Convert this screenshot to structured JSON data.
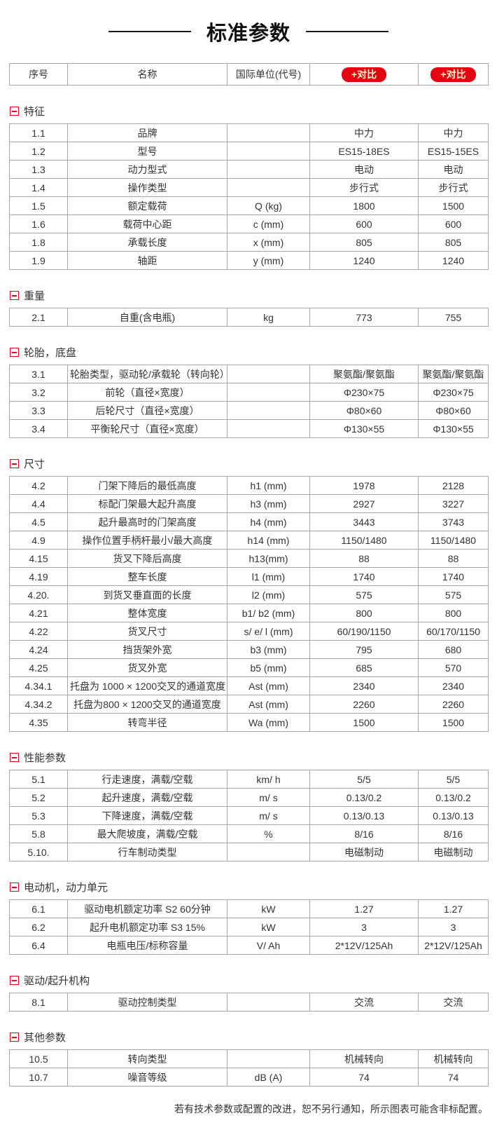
{
  "page": {
    "title": "标准参数",
    "footer_note": "若有技术参数或配置的改进，恕不另行通知，所示图表可能含非标配置。"
  },
  "colors": {
    "accent_red": "#e60012",
    "button_text": "#fffbd0",
    "border_gray": "#a6a6a6",
    "text": "#333333"
  },
  "table_header": {
    "no": "序号",
    "name": "名称",
    "unit": "国际单位(代号)",
    "compare_label": "+对比"
  },
  "sections": [
    {
      "name": "特征",
      "rows": [
        {
          "no": "1.1",
          "name": "品牌",
          "unit": "",
          "v1": "中力",
          "v2": "中力"
        },
        {
          "no": "1.2",
          "name": "型号",
          "unit": "",
          "v1": "ES15-18ES",
          "v2": "ES15-15ES"
        },
        {
          "no": "1.3",
          "name": "动力型式",
          "unit": "",
          "v1": "电动",
          "v2": "电动"
        },
        {
          "no": "1.4",
          "name": "操作类型",
          "unit": "",
          "v1": "步行式",
          "v2": "步行式"
        },
        {
          "no": "1.5",
          "name": "额定载荷",
          "unit": "Q (kg)",
          "v1": "1800",
          "v2": "1500"
        },
        {
          "no": "1.6",
          "name": "载荷中心距",
          "unit": "c (mm)",
          "v1": "600",
          "v2": "600"
        },
        {
          "no": "1.8",
          "name": "承载长度",
          "unit": "x (mm)",
          "v1": "805",
          "v2": "805"
        },
        {
          "no": "1.9",
          "name": "轴距",
          "unit": "y (mm)",
          "v1": "1240",
          "v2": "1240"
        }
      ]
    },
    {
      "name": "重量",
      "rows": [
        {
          "no": "2.1",
          "name": "自重(含电瓶)",
          "unit": "kg",
          "v1": "773",
          "v2": "755"
        }
      ]
    },
    {
      "name": "轮胎，底盘",
      "rows": [
        {
          "no": "3.1",
          "name": "轮胎类型，驱动轮/承载轮（转向轮）",
          "unit": "",
          "v1": "聚氨酯/聚氨酯",
          "v2": "聚氨酯/聚氨酯"
        },
        {
          "no": "3.2",
          "name": "前轮（直径×宽度）",
          "unit": "",
          "v1": "Φ230×75",
          "v2": "Φ230×75"
        },
        {
          "no": "3.3",
          "name": "后轮尺寸（直径×宽度）",
          "unit": "",
          "v1": "Φ80×60",
          "v2": "Φ80×60"
        },
        {
          "no": "3.4",
          "name": "平衡轮尺寸（直径×宽度）",
          "unit": "",
          "v1": "Φ130×55",
          "v2": "Φ130×55"
        }
      ]
    },
    {
      "name": "尺寸",
      "rows": [
        {
          "no": "4.2",
          "name": "门架下降后的最低高度",
          "unit": "h1 (mm)",
          "v1": "1978",
          "v2": "2128"
        },
        {
          "no": "4.4",
          "name": "标配门架最大起升高度",
          "unit": "h3 (mm)",
          "v1": "2927",
          "v2": "3227"
        },
        {
          "no": "4.5",
          "name": "起升最高时的门架高度",
          "unit": "h4 (mm)",
          "v1": "3443",
          "v2": "3743"
        },
        {
          "no": "4.9",
          "name": "操作位置手柄杆最小/最大高度",
          "unit": "h14 (mm)",
          "v1": "1150/1480",
          "v2": "1150/1480"
        },
        {
          "no": "4.15",
          "name": "货叉下降后高度",
          "unit": "h13(mm)",
          "v1": "88",
          "v2": "88"
        },
        {
          "no": "4.19",
          "name": "整车长度",
          "unit": "l1 (mm)",
          "v1": "1740",
          "v2": "1740"
        },
        {
          "no": "4.20.",
          "name": "到货叉垂直面的长度",
          "unit": "l2 (mm)",
          "v1": "575",
          "v2": "575"
        },
        {
          "no": "4.21",
          "name": "整体宽度",
          "unit": "b1/ b2 (mm)",
          "v1": "800",
          "v2": "800"
        },
        {
          "no": "4.22",
          "name": "货叉尺寸",
          "unit": "s/ e/ l (mm)",
          "v1": "60/190/1150",
          "v2": "60/170/1150"
        },
        {
          "no": "4.24",
          "name": "挡货架外宽",
          "unit": "b3 (mm)",
          "v1": "795",
          "v2": "680"
        },
        {
          "no": "4.25",
          "name": "货叉外宽",
          "unit": "b5 (mm)",
          "v1": "685",
          "v2": "570"
        },
        {
          "no": "4.34.1",
          "name": "托盘为 1000 × 1200交叉的通道宽度",
          "unit": "Ast (mm)",
          "v1": "2340",
          "v2": "2340"
        },
        {
          "no": "4.34.2",
          "name": "托盘为800 × 1200交叉的通道宽度",
          "unit": "Ast (mm)",
          "v1": "2260",
          "v2": "2260"
        },
        {
          "no": "4.35",
          "name": "转弯半径",
          "unit": "Wa (mm)",
          "v1": "1500",
          "v2": "1500"
        }
      ]
    },
    {
      "name": "性能参数",
      "rows": [
        {
          "no": "5.1",
          "name": "行走速度，满载/空载",
          "unit": "km/ h",
          "v1": "5/5",
          "v2": "5/5"
        },
        {
          "no": "5.2",
          "name": "起升速度，满载/空载",
          "unit": "m/ s",
          "v1": "0.13/0.2",
          "v2": "0.13/0.2"
        },
        {
          "no": "5.3",
          "name": "下降速度，满载/空载",
          "unit": "m/ s",
          "v1": "0.13/0.13",
          "v2": "0.13/0.13"
        },
        {
          "no": "5.8",
          "name": "最大爬坡度，满载/空载",
          "unit": "%",
          "v1": "8/16",
          "v2": "8/16"
        },
        {
          "no": "5.10.",
          "name": "行车制动类型",
          "unit": "",
          "v1": "电磁制动",
          "v2": "电磁制动"
        }
      ]
    },
    {
      "name": "电动机，动力单元",
      "rows": [
        {
          "no": "6.1",
          "name": "驱动电机额定功率 S2 60分钟",
          "unit": "kW",
          "v1": "1.27",
          "v2": "1.27"
        },
        {
          "no": "6.2",
          "name": "起升电机额定功率 S3 15%",
          "unit": "kW",
          "v1": "3",
          "v2": "3"
        },
        {
          "no": "6.4",
          "name": "电瓶电压/标称容量",
          "unit": "V/ Ah",
          "v1": "2*12V/125Ah",
          "v2": "2*12V/125Ah"
        }
      ]
    },
    {
      "name": "驱动/起升机构",
      "rows": [
        {
          "no": "8.1",
          "name": "驱动控制类型",
          "unit": "",
          "v1": "交流",
          "v2": "交流"
        }
      ]
    },
    {
      "name": "其他参数",
      "rows": [
        {
          "no": "10.5",
          "name": "转向类型",
          "unit": "",
          "v1": "机械转向",
          "v2": "机械转向"
        },
        {
          "no": "10.7",
          "name": "噪音等级",
          "unit": "dB (A)",
          "v1": "74",
          "v2": "74"
        }
      ]
    }
  ]
}
